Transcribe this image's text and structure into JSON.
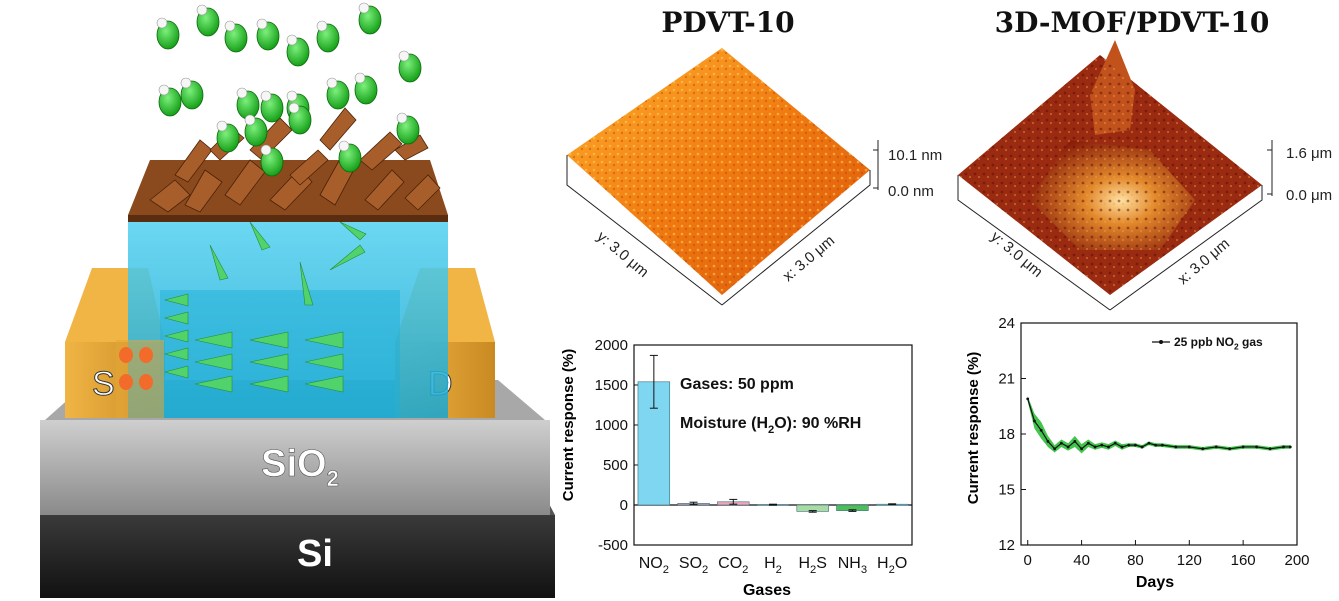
{
  "device": {
    "source_label": "S",
    "drain_label": "D",
    "oxide_label": "SiO",
    "oxide_subscript": "2",
    "substrate_label": "Si"
  },
  "afm": [
    {
      "title": "PDVT-10",
      "z_max": "10.1 nm",
      "z_min": "0.0 nm",
      "y_label": "y: 3.0 μm",
      "x_label": "x: 3.0 μm"
    },
    {
      "title": "3D-MOF/PDVT-10",
      "z_max": "1.6 μm",
      "z_min": "0.0 μm",
      "y_label": "y: 3.0 μm",
      "x_label": "x: 3.0 μm"
    }
  ],
  "colors": {
    "bar_no2": "#7fd6f0",
    "bar_so2": "#c9a3b8",
    "bar_co2": "#f2a5b8",
    "bar_h2s": "#a9dca4",
    "bar_nh3": "#4cbf5a",
    "bar_h2o": "#7fd6f0",
    "band": "#2fbf3a",
    "channel": "#33c4e8",
    "electrode": "#e3a539",
    "oxide": "#9a9a9a",
    "silicon": "#2a2a2a",
    "mof": "#8a4a1e",
    "gas": "#22c322"
  },
  "chart_data": [
    {
      "type": "bar",
      "categories": [
        "NO2",
        "SO2",
        "CO2",
        "H2",
        "H2S",
        "NH3",
        "H2O"
      ],
      "category_labels": [
        {
          "main": "NO",
          "sub": "2"
        },
        {
          "main": "SO",
          "sub": "2"
        },
        {
          "main": "CO",
          "sub": "2"
        },
        {
          "main": "H",
          "sub": "2"
        },
        {
          "main": "H",
          "sub": "2",
          "tail": "S"
        },
        {
          "main": "NH",
          "sub": "3"
        },
        {
          "main": "H",
          "sub": "2",
          "tail": "O"
        }
      ],
      "values": [
        1540,
        20,
        40,
        5,
        -80,
        -70,
        10
      ],
      "errors": [
        330,
        15,
        30,
        5,
        10,
        10,
        5
      ],
      "xlabel": "Gases",
      "ylabel": "Current response (%)",
      "ylim": [
        -500,
        2000
      ],
      "yticks": [
        "-500",
        "0",
        "500",
        "1000",
        "1500",
        "2000"
      ],
      "annotations": [
        "Gases: 50 ppm",
        {
          "pre": "Moisture (H",
          "sub": "2",
          "post": "O): 90 %RH"
        }
      ],
      "grid": false
    },
    {
      "type": "line",
      "series": [
        {
          "name": "25 ppb NO2 gas",
          "legend": {
            "pre": "25 ppb NO",
            "sub": "2",
            "post": " gas"
          },
          "x": [
            0,
            5,
            10,
            15,
            20,
            25,
            30,
            35,
            40,
            45,
            50,
            55,
            60,
            65,
            70,
            75,
            80,
            85,
            90,
            95,
            100,
            110,
            120,
            130,
            140,
            150,
            160,
            170,
            180,
            190,
            195
          ],
          "y": [
            19.9,
            18.7,
            18.2,
            17.6,
            17.2,
            17.5,
            17.3,
            17.6,
            17.2,
            17.5,
            17.3,
            17.4,
            17.3,
            17.5,
            17.3,
            17.4,
            17.4,
            17.3,
            17.5,
            17.4,
            17.4,
            17.3,
            17.3,
            17.2,
            17.3,
            17.2,
            17.3,
            17.3,
            17.2,
            17.3,
            17.3
          ],
          "band": [
            0.15,
            0.4,
            0.45,
            0.3,
            0.2,
            0.2,
            0.2,
            0.3,
            0.25,
            0.2,
            0.15,
            0.15,
            0.15,
            0.15,
            0.15,
            0.1,
            0.1,
            0.1,
            0.1,
            0.1,
            0.1,
            0.1,
            0.1,
            0.1,
            0.1,
            0.1,
            0.1,
            0.1,
            0.1,
            0.1,
            0.1
          ]
        }
      ],
      "xlabel": "Days",
      "ylabel": "Current response (%)",
      "xlim": [
        -5,
        200
      ],
      "ylim": [
        12,
        24
      ],
      "xticks": [
        "0",
        "40",
        "80",
        "120",
        "160",
        "200"
      ],
      "yticks": [
        "12",
        "15",
        "18",
        "21",
        "24"
      ],
      "legend_position": "top-right",
      "grid": false
    }
  ]
}
